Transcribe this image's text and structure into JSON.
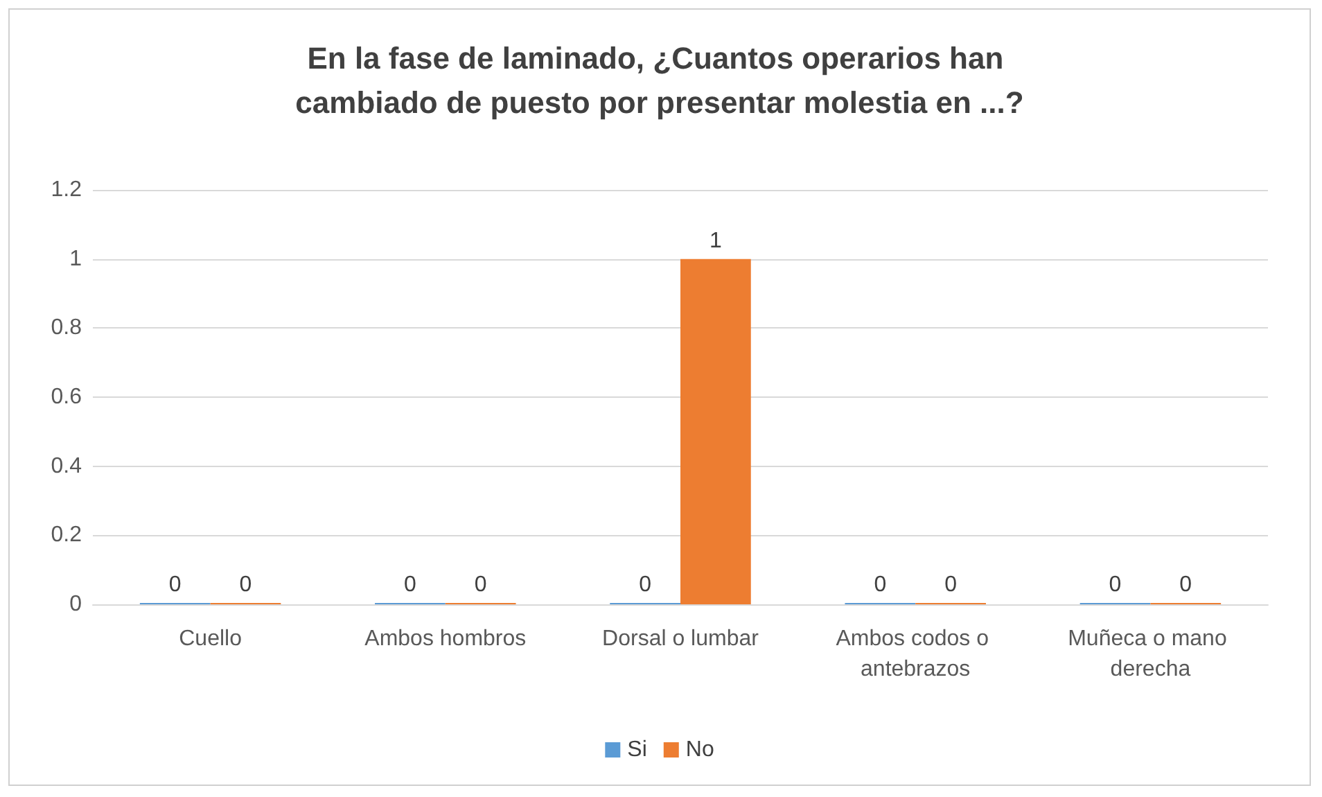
{
  "chart_data": {
    "type": "bar",
    "title": "En la fase de laminado, ¿Cuantos operarios han cambiado de puesto por presentar molestia en ...?",
    "categories": [
      "Cuello",
      "Ambos hombros",
      "Dorsal o lumbar",
      "Ambos codos o antebrazos",
      "Muñeca o mano derecha"
    ],
    "series": [
      {
        "name": "Si",
        "color": "#5b9bd5",
        "values": [
          0,
          0,
          0,
          0,
          0
        ]
      },
      {
        "name": "No",
        "color": "#ed7d31",
        "values": [
          0,
          0,
          1,
          0,
          0
        ]
      }
    ],
    "ylim": [
      0,
      1.2
    ],
    "yticks": [
      0,
      0.2,
      0.4,
      0.6,
      0.8,
      1,
      1.2
    ],
    "grid": "y",
    "legend": "bottom",
    "data_labels": true
  }
}
